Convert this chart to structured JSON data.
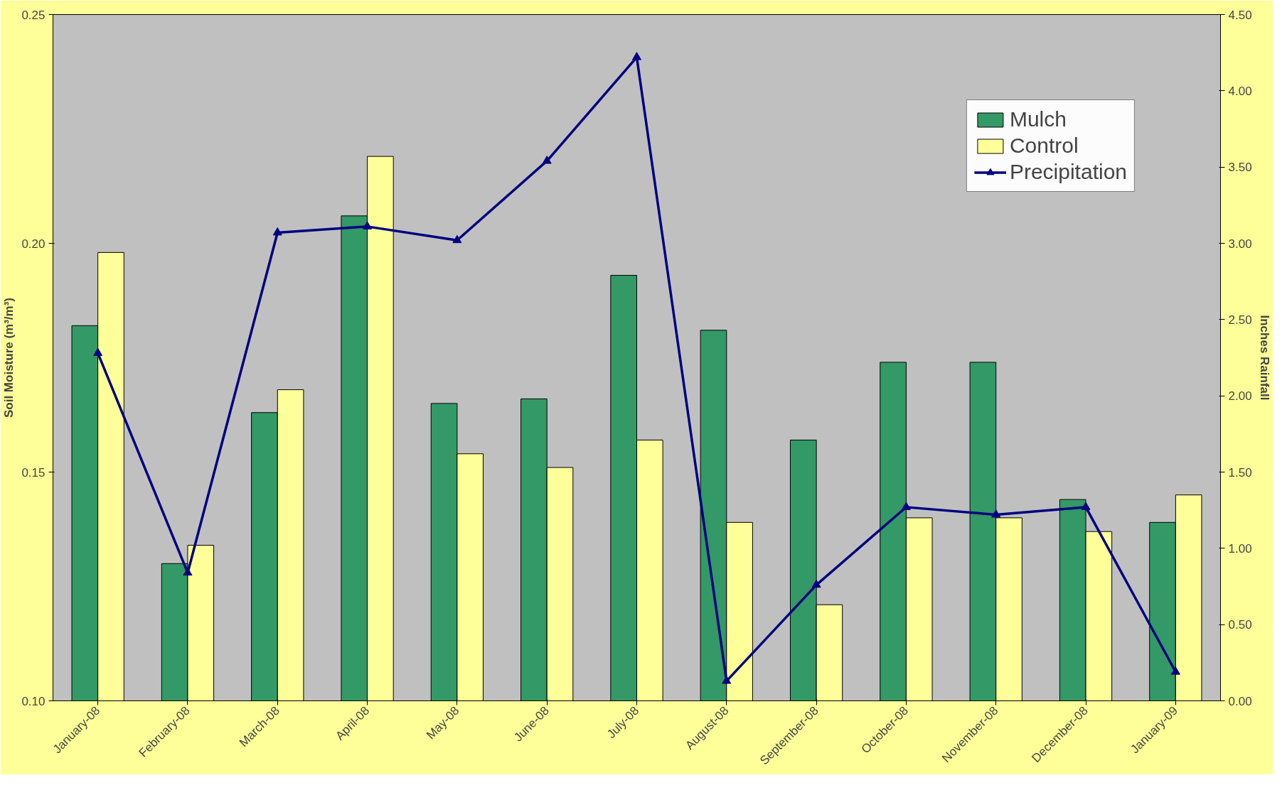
{
  "chart_data": {
    "type": "bar",
    "ylabel": "Soil Moisture (m³/m³)",
    "y2label": "Inches Rainfall",
    "categories": [
      "January-08",
      "February-08",
      "March-08",
      "April-08",
      "May-08",
      "June-08",
      "July-08",
      "August-08",
      "September-08",
      "October-08",
      "November-08",
      "December-08",
      "January-09"
    ],
    "series": [
      {
        "name": "Mulch",
        "color": "#339966",
        "values": [
          0.182,
          0.13,
          0.163,
          0.206,
          0.165,
          0.166,
          0.193,
          0.181,
          0.157,
          0.174,
          0.174,
          0.144,
          0.139
        ]
      },
      {
        "name": "Control",
        "color": "#ffff99",
        "values": [
          0.198,
          0.134,
          0.168,
          0.219,
          0.154,
          0.151,
          0.157,
          0.139,
          0.121,
          0.14,
          0.14,
          0.137,
          0.145
        ]
      },
      {
        "name": "Precipitation",
        "color": "#000080",
        "type": "line",
        "axis": "y2",
        "marker": "triangle",
        "values": [
          2.28,
          0.84,
          3.07,
          3.11,
          3.02,
          3.54,
          4.22,
          0.13,
          0.76,
          1.27,
          1.22,
          1.27,
          0.19
        ]
      }
    ],
    "ylim": [
      0.1,
      0.25
    ],
    "yticks": [
      {
        "value": 0.1,
        "label": "0.10"
      },
      {
        "value": 0.15,
        "label": "0.15"
      },
      {
        "value": 0.2,
        "label": "0.20"
      },
      {
        "value": 0.25,
        "label": "0.25"
      }
    ],
    "y2lim": [
      0,
      4.5
    ],
    "y2ticks": [
      {
        "value": 0,
        "label": "0.00"
      },
      {
        "value": 0.5,
        "label": "0.50"
      },
      {
        "value": 1,
        "label": "1.00"
      },
      {
        "value": 1.5,
        "label": "1.50"
      },
      {
        "value": 2,
        "label": "2.00"
      },
      {
        "value": 2.5,
        "label": "2.50"
      },
      {
        "value": 3,
        "label": "3.00"
      },
      {
        "value": 3.5,
        "label": "3.50"
      },
      {
        "value": 4,
        "label": "4.00"
      },
      {
        "value": 4.5,
        "label": "4.50"
      }
    ],
    "grid": false,
    "legend": "top right"
  }
}
